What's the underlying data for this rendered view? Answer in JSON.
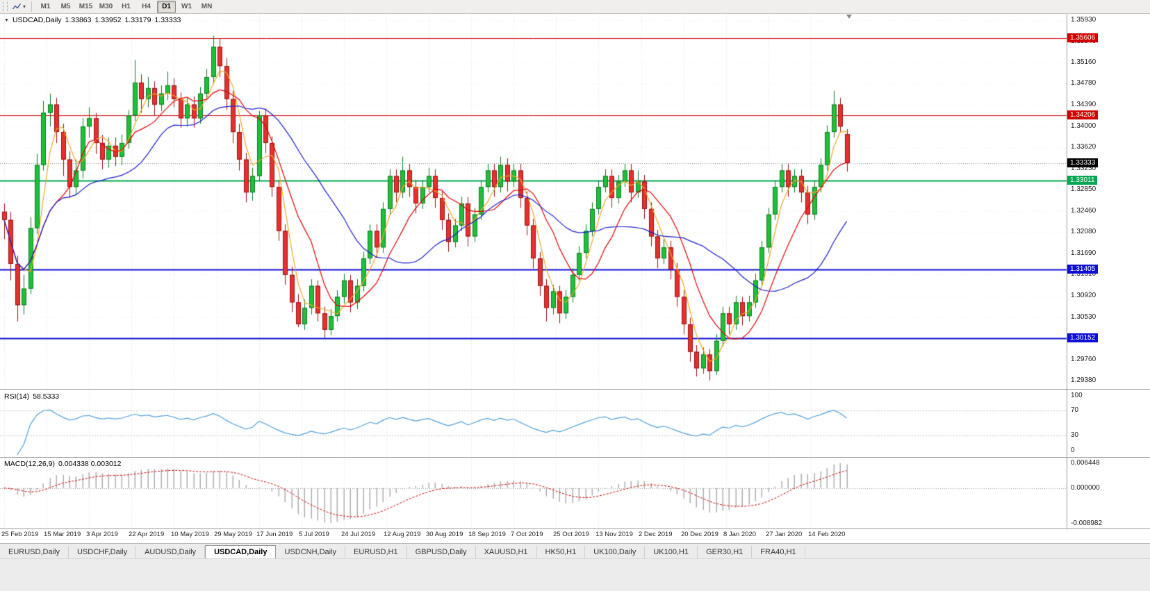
{
  "icons": {
    "collapse": "▼",
    "caret": "▾"
  },
  "toolbar": {
    "timeframes": [
      "M1",
      "M5",
      "M15",
      "M30",
      "H1",
      "H4",
      "D1",
      "W1",
      "MN"
    ],
    "active_timeframe": "D1"
  },
  "chart_header": {
    "symbol": "USDCAD,Daily",
    "open": "1.33863",
    "high": "1.33952",
    "low": "1.33179",
    "close": "1.33333"
  },
  "indicators": {
    "rsi": {
      "name": "RSI(14)",
      "value": "58.5333",
      "axis_ticks": [
        "100",
        "70",
        "30",
        "0"
      ],
      "levels": [
        70,
        30
      ],
      "line_color": "#4D9FDB"
    },
    "macd": {
      "name": "MACD(12,26,9)",
      "value": "0.004338 0.003012",
      "axis_top": "0.006448",
      "axis_zero": "0.000000",
      "axis_bottom": "-0.008982",
      "histogram_color": "#adadad",
      "signal_color": "#d40000"
    }
  },
  "tabs": {
    "items": [
      "EURUSD,Daily",
      "USDCHF,Daily",
      "AUDUSD,Daily",
      "USDCAD,Daily",
      "USDCNH,Daily",
      "EURUSD,H1",
      "GBPUSD,Daily",
      "XAUUSD,H1",
      "HK50,H1",
      "UK100,Daily",
      "UK100,H1",
      "GER30,H1",
      "FRA40,H1"
    ],
    "active": "USDCAD,Daily"
  },
  "chart_data": {
    "type": "candlestick",
    "title": "USDCAD,Daily",
    "last_ohlc": {
      "open": 1.33863,
      "high": 1.33952,
      "low": 1.33179,
      "close": 1.33333
    },
    "price_axis": {
      "min": 1.2925,
      "max": 1.3605,
      "ticks": [
        "1.35930",
        "1.35540",
        "1.35160",
        "1.34780",
        "1.34390",
        "1.34000",
        "1.33620",
        "1.33230",
        "1.32850",
        "1.32460",
        "1.32080",
        "1.31690",
        "1.31310",
        "1.30920",
        "1.30530",
        "1.30150",
        "1.29760",
        "1.29380"
      ]
    },
    "x_labels": [
      "25 Feb 2019",
      "15 Mar 2019",
      "3 Apr 2019",
      "22 Apr 2019",
      "10 May 2019",
      "29 May 2019",
      "17 Jun 2019",
      "5 Jul 2019",
      "24 Jul 2019",
      "12 Aug 2019",
      "30 Aug 2019",
      "18 Sep 2019",
      "7 Oct 2019",
      "25 Oct 2019",
      "13 Nov 2019",
      "2 Dec 2019",
      "20 Dec 2019",
      "8 Jan 2020",
      "27 Jan 2020",
      "14 Feb 2020"
    ],
    "up_color": "#1fbf3a",
    "up_border": "#0b7a1f",
    "down_color": "#e53030",
    "down_border": "#9e0f0f",
    "moving_averages": [
      {
        "period": 4,
        "color": "#f5a623"
      },
      {
        "period": 9,
        "color": "#e00000"
      },
      {
        "period": 21,
        "color": "#1a1ace"
      }
    ],
    "horizontal_lines": [
      {
        "price": 1.35606,
        "label": "1.35606",
        "color": "#d40000",
        "width": 1
      },
      {
        "price": 1.34206,
        "label": "1.34206",
        "color": "#d40000",
        "width": 1
      },
      {
        "price": 1.33011,
        "label": "1.33011",
        "color": "#00a651",
        "width": 2
      },
      {
        "price": 1.31405,
        "label": "1.31405",
        "color": "#0d0dd6",
        "width": 2
      },
      {
        "price": 1.30152,
        "label": "1.30152",
        "color": "#0d0dd6",
        "width": 2
      }
    ],
    "bid_line": {
      "price": 1.33333,
      "label": "1.33333",
      "color": "#000000"
    },
    "rsi": {
      "period": 14,
      "current": 58.5333
    },
    "macd": {
      "fast": 12,
      "slow": 26,
      "signal": 9,
      "current": [
        0.004338,
        0.003012
      ]
    },
    "candles": [
      [
        1.3245,
        1.326,
        1.3195,
        1.323
      ],
      [
        1.323,
        1.3245,
        1.312,
        1.315
      ],
      [
        1.315,
        1.3165,
        1.3045,
        1.3075
      ],
      [
        1.3075,
        1.313,
        1.3058,
        1.3105
      ],
      [
        1.3105,
        1.3235,
        1.3095,
        1.3215
      ],
      [
        1.3215,
        1.335,
        1.3205,
        1.333
      ],
      [
        1.333,
        1.3447,
        1.332,
        1.3425
      ],
      [
        1.3425,
        1.346,
        1.34,
        1.344
      ],
      [
        1.344,
        1.3452,
        1.337,
        1.339
      ],
      [
        1.339,
        1.3405,
        1.331,
        1.334
      ],
      [
        1.334,
        1.3355,
        1.327,
        1.329
      ],
      [
        1.329,
        1.334,
        1.3275,
        1.332
      ],
      [
        1.332,
        1.3415,
        1.3305,
        1.34
      ],
      [
        1.34,
        1.3435,
        1.338,
        1.3415
      ],
      [
        1.3415,
        1.3425,
        1.335,
        1.337
      ],
      [
        1.337,
        1.3385,
        1.3322,
        1.334
      ],
      [
        1.334,
        1.338,
        1.3325,
        1.3365
      ],
      [
        1.3365,
        1.338,
        1.3328,
        1.3345
      ],
      [
        1.3345,
        1.3385,
        1.333,
        1.337
      ],
      [
        1.337,
        1.343,
        1.336,
        1.342
      ],
      [
        1.342,
        1.3521,
        1.341,
        1.348
      ],
      [
        1.348,
        1.3495,
        1.3425,
        1.345
      ],
      [
        1.345,
        1.349,
        1.3435,
        1.347
      ],
      [
        1.347,
        1.3482,
        1.342,
        1.344
      ],
      [
        1.344,
        1.3475,
        1.3428,
        1.346
      ],
      [
        1.346,
        1.35,
        1.3448,
        1.3475
      ],
      [
        1.3475,
        1.3488,
        1.3435,
        1.345
      ],
      [
        1.345,
        1.3462,
        1.3398,
        1.3415
      ],
      [
        1.3415,
        1.3452,
        1.34,
        1.344
      ],
      [
        1.344,
        1.3455,
        1.3398,
        1.3415
      ],
      [
        1.3415,
        1.3472,
        1.3405,
        1.346
      ],
      [
        1.346,
        1.3505,
        1.3448,
        1.349
      ],
      [
        1.349,
        1.3565,
        1.3478,
        1.3545
      ],
      [
        1.3545,
        1.356,
        1.349,
        1.351
      ],
      [
        1.351,
        1.3525,
        1.343,
        1.345
      ],
      [
        1.345,
        1.3465,
        1.337,
        1.339
      ],
      [
        1.339,
        1.3405,
        1.332,
        1.334
      ],
      [
        1.334,
        1.3352,
        1.3262,
        1.328
      ],
      [
        1.328,
        1.3325,
        1.3265,
        1.331
      ],
      [
        1.331,
        1.3428,
        1.33,
        1.342
      ],
      [
        1.342,
        1.3432,
        1.3352,
        1.337
      ],
      [
        1.337,
        1.3382,
        1.3272,
        1.329
      ],
      [
        1.329,
        1.3302,
        1.3192,
        1.321
      ],
      [
        1.321,
        1.3222,
        1.3112,
        1.313
      ],
      [
        1.313,
        1.3145,
        1.3062,
        1.308
      ],
      [
        1.308,
        1.3095,
        1.3035,
        1.304
      ],
      [
        1.304,
        1.3085,
        1.303,
        1.307
      ],
      [
        1.307,
        1.3122,
        1.3058,
        1.311
      ],
      [
        1.311,
        1.312,
        1.3045,
        1.306
      ],
      [
        1.306,
        1.3072,
        1.3016,
        1.303
      ],
      [
        1.303,
        1.3068,
        1.302,
        1.3055
      ],
      [
        1.3055,
        1.3102,
        1.3045,
        1.309
      ],
      [
        1.309,
        1.3132,
        1.3078,
        1.312
      ],
      [
        1.312,
        1.313,
        1.3062,
        1.308
      ],
      [
        1.308,
        1.3122,
        1.3068,
        1.311
      ],
      [
        1.311,
        1.3172,
        1.31,
        1.316
      ],
      [
        1.316,
        1.3222,
        1.315,
        1.321
      ],
      [
        1.321,
        1.3222,
        1.3162,
        1.318
      ],
      [
        1.318,
        1.3262,
        1.317,
        1.325
      ],
      [
        1.325,
        1.3322,
        1.324,
        1.331
      ],
      [
        1.331,
        1.3322,
        1.3262,
        1.328
      ],
      [
        1.328,
        1.3345,
        1.327,
        1.332
      ],
      [
        1.332,
        1.3332,
        1.3272,
        1.329
      ],
      [
        1.329,
        1.3302,
        1.3242,
        1.326
      ],
      [
        1.326,
        1.3302,
        1.325,
        1.329
      ],
      [
        1.329,
        1.3325,
        1.328,
        1.331
      ],
      [
        1.331,
        1.3322,
        1.3252,
        1.327
      ],
      [
        1.327,
        1.3282,
        1.3212,
        1.323
      ],
      [
        1.323,
        1.3242,
        1.3172,
        1.319
      ],
      [
        1.319,
        1.3232,
        1.318,
        1.322
      ],
      [
        1.322,
        1.3272,
        1.321,
        1.326
      ],
      [
        1.326,
        1.3272,
        1.3182,
        1.32
      ],
      [
        1.32,
        1.3252,
        1.319,
        1.324
      ],
      [
        1.324,
        1.3302,
        1.323,
        1.329
      ],
      [
        1.329,
        1.3332,
        1.328,
        1.332
      ],
      [
        1.332,
        1.3332,
        1.3272,
        1.329
      ],
      [
        1.329,
        1.3345,
        1.328,
        1.333
      ],
      [
        1.333,
        1.3342,
        1.3282,
        1.33
      ],
      [
        1.33,
        1.3332,
        1.329,
        1.332
      ],
      [
        1.332,
        1.3332,
        1.3252,
        1.327
      ],
      [
        1.327,
        1.3282,
        1.3202,
        1.322
      ],
      [
        1.322,
        1.3232,
        1.3142,
        1.316
      ],
      [
        1.316,
        1.3172,
        1.3092,
        1.311
      ],
      [
        1.311,
        1.3122,
        1.3045,
        1.307
      ],
      [
        1.307,
        1.3112,
        1.3058,
        1.31
      ],
      [
        1.31,
        1.311,
        1.3042,
        1.306
      ],
      [
        1.306,
        1.3102,
        1.305,
        1.309
      ],
      [
        1.309,
        1.3142,
        1.308,
        1.313
      ],
      [
        1.313,
        1.3182,
        1.312,
        1.317
      ],
      [
        1.317,
        1.3222,
        1.316,
        1.321
      ],
      [
        1.321,
        1.3262,
        1.32,
        1.325
      ],
      [
        1.325,
        1.3302,
        1.324,
        1.329
      ],
      [
        1.329,
        1.3322,
        1.328,
        1.331
      ],
      [
        1.331,
        1.3322,
        1.3252,
        1.327
      ],
      [
        1.327,
        1.3312,
        1.326,
        1.33
      ],
      [
        1.33,
        1.3332,
        1.329,
        1.332
      ],
      [
        1.332,
        1.3332,
        1.3262,
        1.328
      ],
      [
        1.328,
        1.332,
        1.327,
        1.33
      ],
      [
        1.33,
        1.3312,
        1.3232,
        1.325
      ],
      [
        1.325,
        1.3262,
        1.3182,
        1.32
      ],
      [
        1.32,
        1.3212,
        1.3142,
        1.316
      ],
      [
        1.316,
        1.3195,
        1.315,
        1.318
      ],
      [
        1.318,
        1.3192,
        1.3122,
        1.314
      ],
      [
        1.314,
        1.3152,
        1.3072,
        1.309
      ],
      [
        1.309,
        1.3102,
        1.3022,
        1.304
      ],
      [
        1.304,
        1.3052,
        1.2972,
        1.299
      ],
      [
        1.299,
        1.3002,
        1.2945,
        1.296
      ],
      [
        1.296,
        1.2998,
        1.295,
        1.2985
      ],
      [
        1.2985,
        1.2995,
        1.2938,
        1.2955
      ],
      [
        1.2955,
        1.3022,
        1.2948,
        1.301
      ],
      [
        1.301,
        1.3072,
        1.3,
        1.306
      ],
      [
        1.306,
        1.3072,
        1.3022,
        1.304
      ],
      [
        1.304,
        1.3092,
        1.303,
        1.308
      ],
      [
        1.308,
        1.309,
        1.3038,
        1.3055
      ],
      [
        1.3055,
        1.3092,
        1.3045,
        1.308
      ],
      [
        1.308,
        1.3132,
        1.307,
        1.312
      ],
      [
        1.312,
        1.3192,
        1.311,
        1.318
      ],
      [
        1.318,
        1.3252,
        1.317,
        1.324
      ],
      [
        1.324,
        1.3302,
        1.323,
        1.329
      ],
      [
        1.329,
        1.3332,
        1.328,
        1.332
      ],
      [
        1.332,
        1.3332,
        1.3272,
        1.329
      ],
      [
        1.329,
        1.3322,
        1.328,
        1.331
      ],
      [
        1.331,
        1.3322,
        1.3262,
        1.328
      ],
      [
        1.328,
        1.3292,
        1.3222,
        1.324
      ],
      [
        1.324,
        1.3302,
        1.323,
        1.329
      ],
      [
        1.329,
        1.3342,
        1.328,
        1.333
      ],
      [
        1.333,
        1.3402,
        1.332,
        1.339
      ],
      [
        1.339,
        1.3465,
        1.338,
        1.344
      ],
      [
        1.344,
        1.3452,
        1.339,
        1.34
      ],
      [
        1.33863,
        1.33952,
        1.33179,
        1.33333
      ]
    ]
  }
}
